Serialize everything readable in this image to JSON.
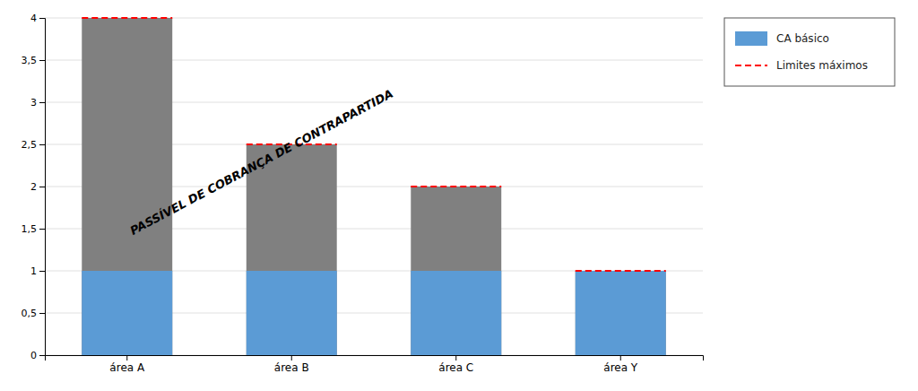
{
  "chart_data": {
    "type": "bar",
    "categories": [
      "área A",
      "área B",
      "área C",
      "área Y"
    ],
    "series": [
      {
        "type": "bar",
        "color": "#808080",
        "values": [
          4,
          2.5,
          2,
          1
        ]
      },
      {
        "name": "CA básico",
        "type": "bar",
        "color": "#5b9bd5",
        "values": [
          1,
          1,
          1,
          1
        ]
      },
      {
        "name": "Limites máximos",
        "type": "scatter",
        "marker": "dash",
        "line_style": "dashed",
        "color": "red",
        "values": [
          4,
          2.5,
          2,
          1
        ]
      }
    ],
    "ylim": [
      0,
      4
    ],
    "yticks": [
      0,
      {
        "value": 0.5,
        "label": "0,5"
      },
      1,
      {
        "value": 1.5,
        "label": "1,5"
      },
      2,
      {
        "value": 2.5,
        "label": "2,5"
      },
      3,
      {
        "value": 3.5,
        "label": "3,5"
      },
      4
    ],
    "grid": true,
    "legend": "right",
    "annotations": [
      {
        "text": "PASSÍVEL DE COBRANÇA DE CONTRAPARTIDA"
      }
    ]
  }
}
